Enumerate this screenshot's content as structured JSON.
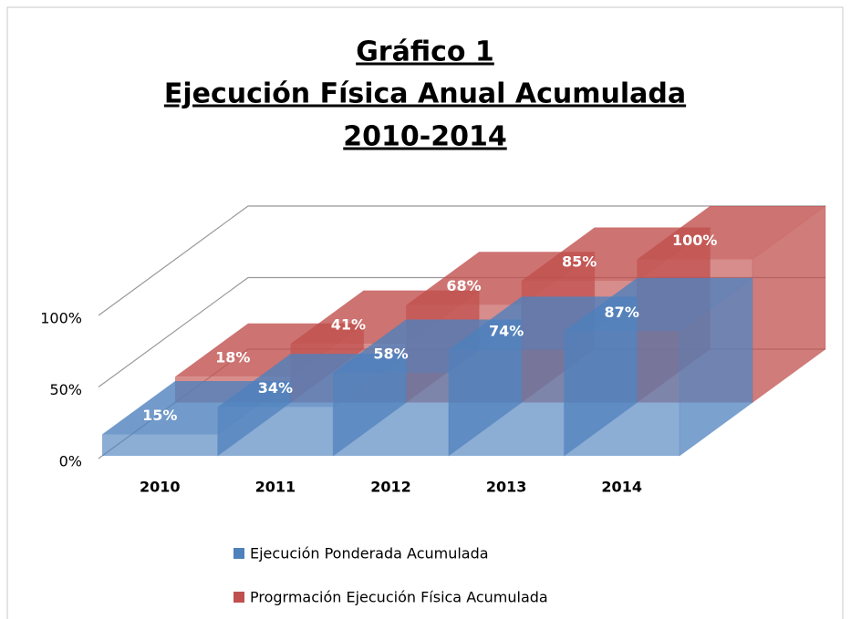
{
  "chart_data": {
    "type": "bar3d",
    "title": [
      "Gráfico 1",
      "Ejecución Física Anual Acumulada",
      "2010-2014"
    ],
    "categories": [
      "2010",
      "2011",
      "2012",
      "2013",
      "2014"
    ],
    "series": [
      {
        "name": "Ejecución Ponderada Acumulada",
        "color": "#4f81bd",
        "values": [
          15,
          34,
          58,
          74,
          87
        ],
        "value_labels": [
          "15%",
          "34%",
          "58%",
          "74%",
          "87%"
        ]
      },
      {
        "name": "Progrmación Ejecución Física Acumulada",
        "color": "#c0504d",
        "values": [
          18,
          41,
          68,
          85,
          100
        ],
        "value_labels": [
          "18%",
          "41%",
          "68%",
          "85%",
          "100%"
        ]
      }
    ],
    "ylim": [
      0,
      100
    ],
    "yticks": [
      {
        "value": 0,
        "label": "0%"
      },
      {
        "value": 50,
        "label": "50%"
      },
      {
        "value": 100,
        "label": "100%"
      }
    ],
    "grid": true
  }
}
